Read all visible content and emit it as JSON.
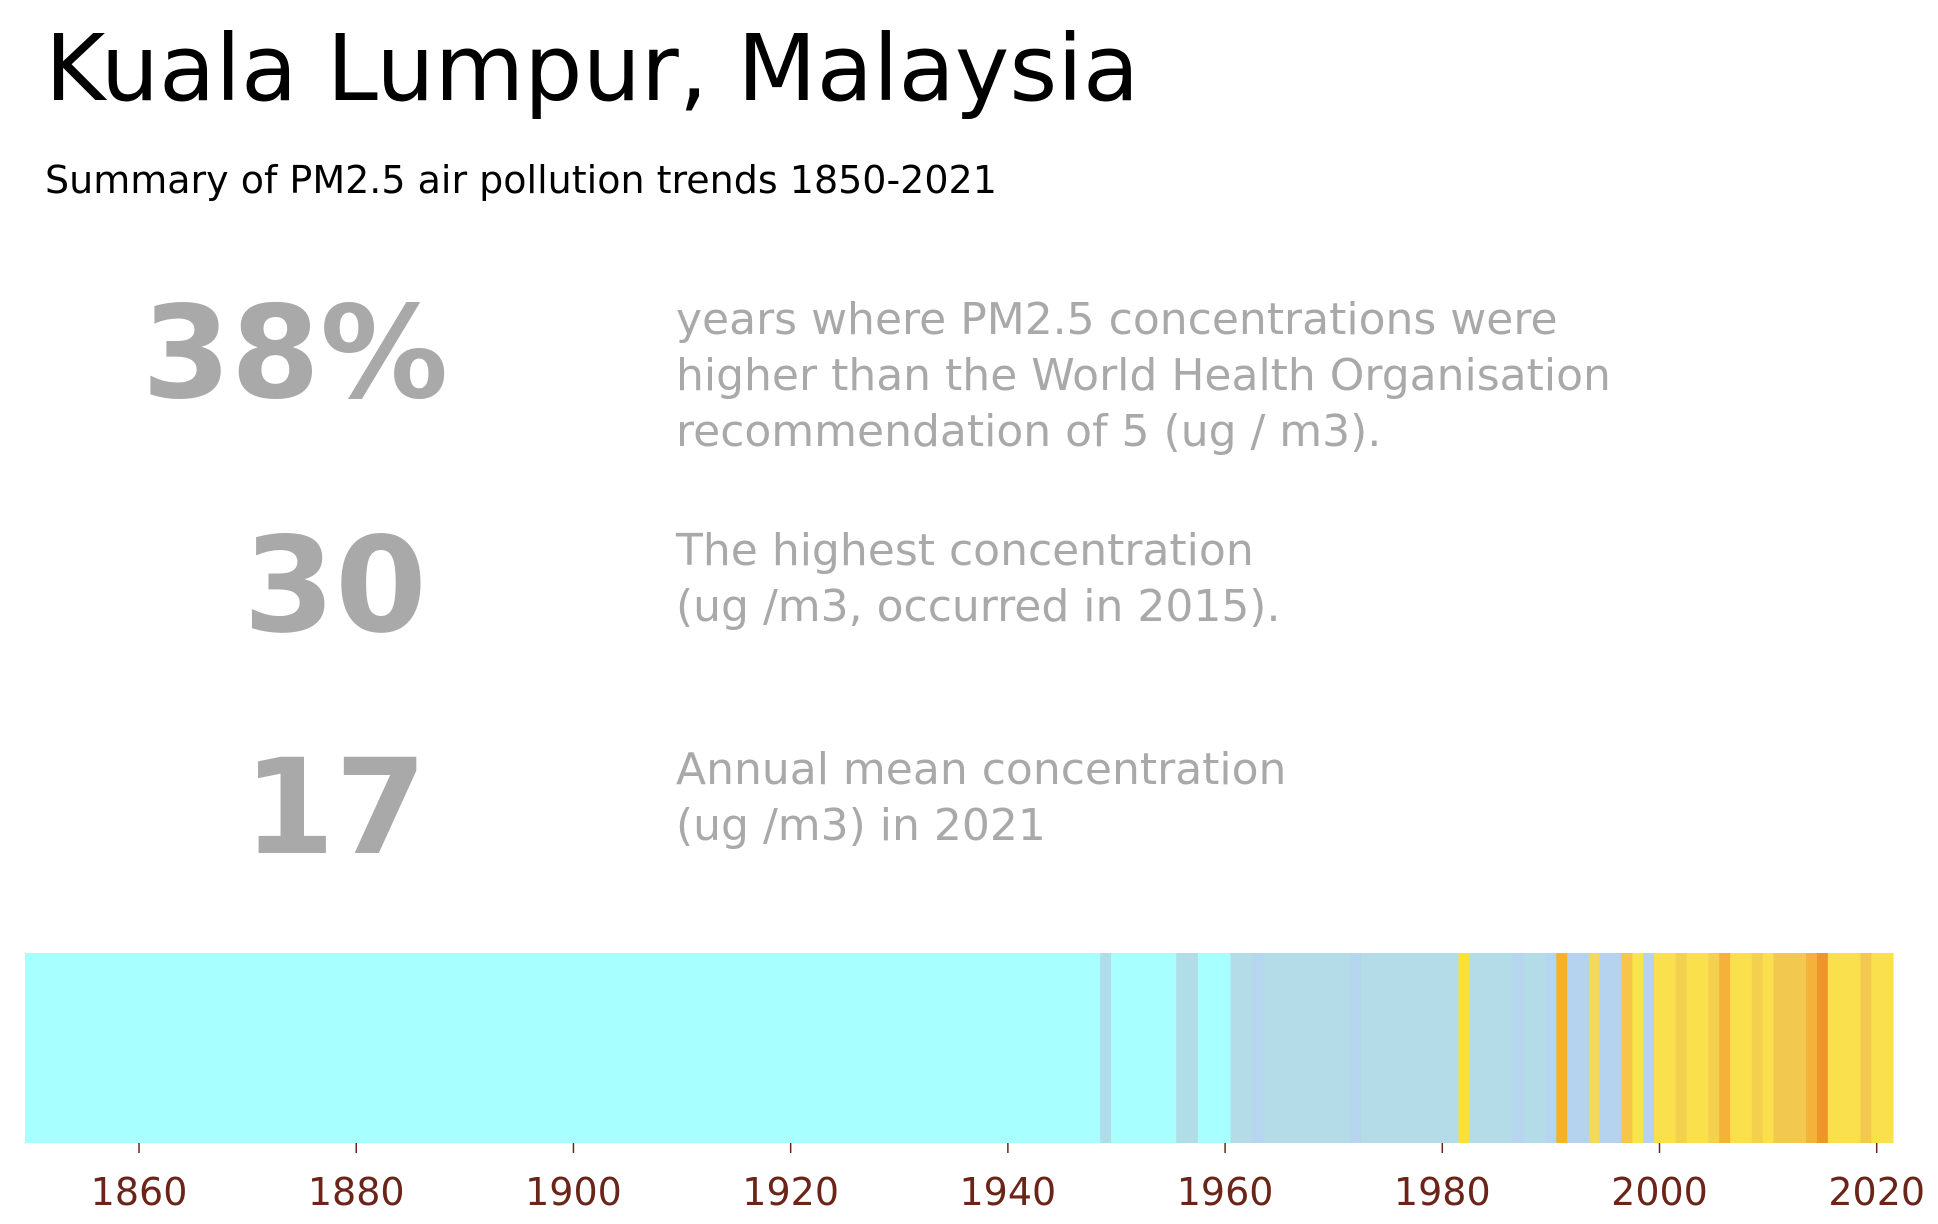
{
  "title": "Kuala Lumpur, Malaysia",
  "subtitle": "Summary of PM2.5 air pollution trends 1850-2021",
  "stats": [
    {
      "value": "38%",
      "lines": [
        "years where PM2.5 concentrations were",
        "higher than the World Health Organisation",
        "recommendation of 5 (ug / m3)."
      ]
    },
    {
      "value": "30",
      "lines": [
        "The highest concentration",
        "(ug /m3, occurred in 2015)."
      ]
    },
    {
      "value": "17",
      "lines": [
        "Annual mean concentration",
        "(ug /m3) in 2021"
      ]
    }
  ],
  "colors": {
    "text_muted": "#a9a9a9",
    "tick_label": "#6b2418"
  },
  "chart_data": {
    "type": "heatmap",
    "x_range": [
      1850,
      2021
    ],
    "xlim": [
      1849.5,
      2021.5
    ],
    "ticks": [
      1860,
      1880,
      1900,
      1920,
      1940,
      1960,
      1980,
      2000,
      2020
    ],
    "segments": [
      {
        "start": 1850,
        "end": 1948,
        "color": "#a8ffff"
      },
      {
        "start": 1949,
        "end": 1949,
        "color": "#b0dde8"
      },
      {
        "start": 1950,
        "end": 1955,
        "color": "#a8ffff"
      },
      {
        "start": 1956,
        "end": 1957,
        "color": "#b0dde8"
      },
      {
        "start": 1958,
        "end": 1960,
        "color": "#a8ffff"
      },
      {
        "start": 1961,
        "end": 1962,
        "color": "#b3dbe8"
      },
      {
        "start": 1963,
        "end": 1963,
        "color": "#b5d6ee"
      },
      {
        "start": 1964,
        "end": 1971,
        "color": "#b3dbe8"
      },
      {
        "start": 1972,
        "end": 1972,
        "color": "#b5d6ee"
      },
      {
        "start": 1973,
        "end": 1981,
        "color": "#b3dbe8"
      },
      {
        "start": 1982,
        "end": 1982,
        "color": "#fce033"
      },
      {
        "start": 1983,
        "end": 1986,
        "color": "#b3dbe8"
      },
      {
        "start": 1987,
        "end": 1987,
        "color": "#b5d6ee"
      },
      {
        "start": 1988,
        "end": 1989,
        "color": "#b3dbe8"
      },
      {
        "start": 1990,
        "end": 1990,
        "color": "#b5d6ee"
      },
      {
        "start": 1991,
        "end": 1991,
        "color": "#f6b02c"
      },
      {
        "start": 1992,
        "end": 1993,
        "color": "#b5d2ee"
      },
      {
        "start": 1994,
        "end": 1994,
        "color": "#f3d85a"
      },
      {
        "start": 1995,
        "end": 1996,
        "color": "#b5d2ee"
      },
      {
        "start": 1997,
        "end": 1997,
        "color": "#f5c64a"
      },
      {
        "start": 1998,
        "end": 1998,
        "color": "#f9e44c"
      },
      {
        "start": 1999,
        "end": 1999,
        "color": "#b5d2ee"
      },
      {
        "start": 2000,
        "end": 2001,
        "color": "#f9e04c"
      },
      {
        "start": 2002,
        "end": 2002,
        "color": "#f4d04f"
      },
      {
        "start": 2003,
        "end": 2004,
        "color": "#f9e04c"
      },
      {
        "start": 2005,
        "end": 2005,
        "color": "#f4d04f"
      },
      {
        "start": 2006,
        "end": 2006,
        "color": "#f4b23a"
      },
      {
        "start": 2007,
        "end": 2008,
        "color": "#f9e04c"
      },
      {
        "start": 2009,
        "end": 2009,
        "color": "#f4d04f"
      },
      {
        "start": 2010,
        "end": 2010,
        "color": "#f9e04c"
      },
      {
        "start": 2011,
        "end": 2013,
        "color": "#f2c84e"
      },
      {
        "start": 2014,
        "end": 2014,
        "color": "#f4b23a"
      },
      {
        "start": 2015,
        "end": 2015,
        "color": "#ef962a"
      },
      {
        "start": 2016,
        "end": 2018,
        "color": "#f9e04c"
      },
      {
        "start": 2019,
        "end": 2019,
        "color": "#f2c84e"
      },
      {
        "start": 2020,
        "end": 2021,
        "color": "#f9e04c"
      }
    ]
  }
}
